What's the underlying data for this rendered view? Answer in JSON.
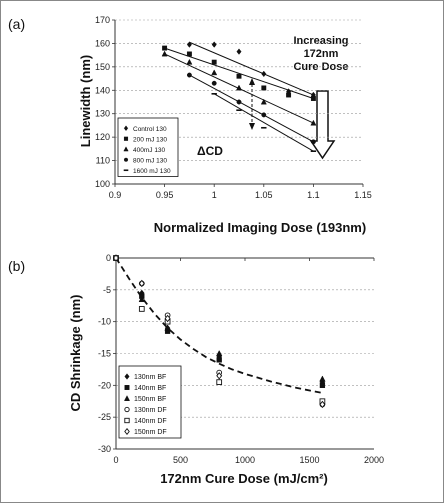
{
  "chart_data": [
    {
      "panel_label": "(a)",
      "type": "scatter",
      "xlabel": "Normalized Imaging Dose (193nm)",
      "ylabel": "Linewidth (nm)",
      "xlim": [
        0.9,
        1.15
      ],
      "ylim": [
        100,
        170
      ],
      "x_ticks": [
        "0.9",
        "0.95",
        "1",
        "1.05",
        "1.1",
        "1.15"
      ],
      "y_ticks": [
        "100",
        "110",
        "120",
        "130",
        "140",
        "150",
        "160",
        "170"
      ],
      "grid": "horizontal",
      "legend_position": "bottom-left",
      "series": [
        {
          "name": "Control 130",
          "marker": "diamond",
          "points": [
            [
              0.975,
              159.5
            ],
            [
              1.0,
              159.5
            ],
            [
              1.025,
              156.5
            ],
            [
              1.05,
              147
            ],
            [
              1.075,
              139.5
            ],
            [
              1.1,
              138
            ]
          ],
          "fit": [
            [
              0.975,
              160.5
            ],
            [
              1.1,
              138
            ]
          ]
        },
        {
          "name": "200 mJ 130",
          "marker": "square",
          "points": [
            [
              0.95,
              158
            ],
            [
              0.975,
              155.5
            ],
            [
              1.0,
              152
            ],
            [
              1.025,
              146
            ],
            [
              1.05,
              141
            ],
            [
              1.075,
              138
            ],
            [
              1.1,
              136.5
            ]
          ],
          "fit": [
            [
              0.95,
              158
            ],
            [
              1.1,
              136.5
            ]
          ]
        },
        {
          "name": "400mJ 130",
          "marker": "triangle",
          "points": [
            [
              0.95,
              155.5
            ],
            [
              0.975,
              152
            ],
            [
              1.0,
              147.5
            ],
            [
              1.025,
              141
            ],
            [
              1.05,
              135
            ],
            [
              1.1,
              126
            ]
          ],
          "fit": [
            [
              0.95,
              155.5
            ],
            [
              1.1,
              126
            ]
          ]
        },
        {
          "name": "800 mJ 130",
          "marker": "circle",
          "points": [
            [
              0.975,
              146.5
            ],
            [
              1.0,
              143
            ],
            [
              1.025,
              135
            ],
            [
              1.05,
              129.5
            ],
            [
              1.1,
              118
            ]
          ],
          "fit": [
            [
              0.975,
              146.5
            ],
            [
              1.1,
              118
            ]
          ]
        },
        {
          "name": "1600 mJ 130",
          "marker": "dash",
          "points": [
            [
              1.0,
              138.5
            ],
            [
              1.025,
              131.5
            ],
            [
              1.05,
              124
            ],
            [
              1.1,
              114
            ]
          ],
          "fit": [
            [
              1.0,
              138.5
            ],
            [
              1.1,
              114
            ]
          ]
        }
      ],
      "annotations": {
        "increasing_lines": [
          "Increasing",
          "172nm",
          "Cure Dose"
        ],
        "delta_label": "ΔCD"
      }
    },
    {
      "panel_label": "(b)",
      "type": "scatter",
      "xlabel": "172nm Cure Dose (mJ/cm²)",
      "ylabel": "CD Shrinkage (nm)",
      "xlim": [
        0,
        2000
      ],
      "ylim": [
        -30,
        0
      ],
      "x_ticks": [
        "0",
        "500",
        "1000",
        "1500",
        "2000"
      ],
      "y_ticks": [
        "0",
        "-5",
        "-10",
        "-15",
        "-20",
        "-25",
        "-30"
      ],
      "grid": "horizontal",
      "legend_position": "bottom-left",
      "series": [
        {
          "name": "130nm BF",
          "marker": "diamond",
          "filled": true,
          "points": [
            [
              0,
              0
            ],
            [
              200,
              -5.5
            ],
            [
              400,
              -11
            ],
            [
              800,
              -15.5
            ],
            [
              1600,
              -19.5
            ]
          ]
        },
        {
          "name": "140nm BF",
          "marker": "square",
          "filled": true,
          "points": [
            [
              0,
              0
            ],
            [
              200,
              -6
            ],
            [
              400,
              -11.5
            ],
            [
              800,
              -16
            ],
            [
              1600,
              -20
            ]
          ]
        },
        {
          "name": "150nm BF",
          "marker": "triangle",
          "filled": true,
          "points": [
            [
              0,
              0
            ],
            [
              200,
              -6.5
            ],
            [
              400,
              -11
            ],
            [
              800,
              -15
            ],
            [
              1600,
              -19
            ]
          ]
        },
        {
          "name": "130nm DF",
          "marker": "circle",
          "filled": false,
          "points": [
            [
              0,
              0
            ],
            [
              200,
              -4
            ],
            [
              400,
              -9
            ],
            [
              800,
              -18
            ],
            [
              1600,
              -23
            ]
          ]
        },
        {
          "name": "140nm DF",
          "marker": "square",
          "filled": false,
          "points": [
            [
              0,
              0
            ],
            [
              200,
              -8
            ],
            [
              400,
              -10
            ],
            [
              800,
              -19.5
            ],
            [
              1600,
              -22.5
            ]
          ]
        },
        {
          "name": "150nm DF",
          "marker": "diamond",
          "filled": false,
          "points": [
            [
              0,
              0
            ],
            [
              200,
              -4
            ],
            [
              400,
              -9.5
            ],
            [
              800,
              -18.5
            ],
            [
              1600,
              -23
            ]
          ]
        }
      ],
      "trend_line": {
        "style": "dashed",
        "points": [
          [
            0,
            0
          ],
          [
            100,
            -3.2
          ],
          [
            200,
            -6.2
          ],
          [
            300,
            -8.8
          ],
          [
            400,
            -11
          ],
          [
            500,
            -12.8
          ],
          [
            600,
            -14.3
          ],
          [
            700,
            -15.6
          ],
          [
            800,
            -16.6
          ],
          [
            900,
            -17.5
          ],
          [
            1000,
            -18.2
          ],
          [
            1200,
            -19.4
          ],
          [
            1400,
            -20.4
          ],
          [
            1600,
            -21.2
          ]
        ]
      }
    }
  ],
  "colors": {
    "marker": "#111111",
    "grid": "#9a9a9a",
    "axis": "#333333",
    "border": "#888888"
  }
}
